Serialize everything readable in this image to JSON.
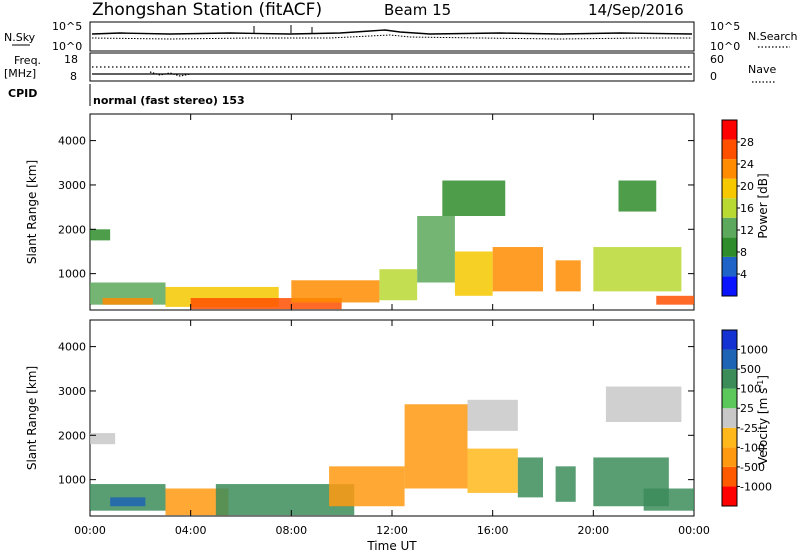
{
  "header": {
    "station": "Zhongshan Station (fitACF)",
    "beam": "Beam 15",
    "date": "14/Sep/2016"
  },
  "noise_panel": {
    "left_label": "N.Sky",
    "left_ticks": [
      "10^5",
      "10^0"
    ],
    "right_ticks": [
      "10^5",
      "10^0"
    ],
    "right_label": "N.Search"
  },
  "freq_panel": {
    "left_label_1": "Freq.",
    "left_label_2": "[MHz]",
    "left_ticks": [
      "18",
      "8"
    ],
    "right_ticks": [
      "60",
      "0"
    ],
    "right_label": "Nave"
  },
  "cpid_panel": {
    "label": "CPID",
    "text": "normal (fast stereo) 153"
  },
  "colors": {
    "power_scale": [
      "#0a14ff",
      "#1e64c8",
      "#2e8c2a",
      "#5ca85c",
      "#b8d832",
      "#f6c800",
      "#ff8c00",
      "#ff5000",
      "#ff0000"
    ],
    "velocity_scale": [
      "#ff0000",
      "#ff5a00",
      "#ff9a10",
      "#ffb81c",
      "#c8c8c8",
      "#5cc85c",
      "#3c8c5a",
      "#1e64b4",
      "#1432d2"
    ]
  },
  "chart_data": [
    {
      "type": "heatmap",
      "name": "power",
      "ylabel": "Slant Range [km]",
      "xlabel": "Time UT",
      "xlim": [
        0,
        24
      ],
      "ylim": [
        180,
        4600
      ],
      "y_ticks": [
        "1000",
        "2000",
        "3000",
        "4000"
      ],
      "y_tick_values": [
        1000,
        2000,
        3000,
        4000
      ],
      "colorbar": {
        "label": "Power [dB]",
        "ticks": [
          "4",
          "8",
          "12",
          "16",
          "20",
          "24",
          "28"
        ],
        "range": [
          0,
          32
        ]
      },
      "regions": [
        {
          "t0": 0.0,
          "t1": 0.8,
          "r0": 1750,
          "r1": 2000,
          "val": 8
        },
        {
          "t0": 0.0,
          "t1": 3.0,
          "r0": 300,
          "r1": 800,
          "val": 14
        },
        {
          "t0": 0.5,
          "t1": 2.5,
          "r0": 300,
          "r1": 450,
          "val": 24
        },
        {
          "t0": 3.0,
          "t1": 7.5,
          "r0": 250,
          "r1": 700,
          "val": 20
        },
        {
          "t0": 4.0,
          "t1": 10.0,
          "r0": 200,
          "r1": 450,
          "val": 28
        },
        {
          "t0": 8.0,
          "t1": 11.5,
          "r0": 350,
          "r1": 850,
          "val": 22
        },
        {
          "t0": 11.5,
          "t1": 13.0,
          "r0": 400,
          "r1": 1100,
          "val": 16
        },
        {
          "t0": 13.0,
          "t1": 14.5,
          "r0": 800,
          "r1": 2300,
          "val": 12
        },
        {
          "t0": 14.5,
          "t1": 16.0,
          "r0": 500,
          "r1": 1500,
          "val": 20
        },
        {
          "t0": 14.0,
          "t1": 16.5,
          "r0": 2300,
          "r1": 3100,
          "val": 8
        },
        {
          "t0": 16.0,
          "t1": 18.0,
          "r0": 600,
          "r1": 1600,
          "val": 24
        },
        {
          "t0": 18.5,
          "t1": 19.5,
          "r0": 600,
          "r1": 1300,
          "val": 24
        },
        {
          "t0": 20.0,
          "t1": 23.5,
          "r0": 600,
          "r1": 1600,
          "val": 16
        },
        {
          "t0": 21.0,
          "t1": 22.5,
          "r0": 2400,
          "r1": 3100,
          "val": 8
        },
        {
          "t0": 22.5,
          "t1": 24.0,
          "r0": 300,
          "r1": 500,
          "val": 26
        }
      ]
    },
    {
      "type": "heatmap",
      "name": "velocity",
      "ylabel": "Slant Range [km]",
      "xlabel": "Time UT",
      "xlim": [
        0,
        24
      ],
      "ylim": [
        180,
        4600
      ],
      "y_ticks": [
        "1000",
        "2000",
        "3000",
        "4000"
      ],
      "y_tick_values": [
        1000,
        2000,
        3000,
        4000
      ],
      "x_ticks": [
        "00:00",
        "04:00",
        "08:00",
        "12:00",
        "16:00",
        "20:00",
        "00:00"
      ],
      "x_tick_values": [
        0,
        4,
        8,
        12,
        16,
        20,
        24
      ],
      "colorbar": {
        "label": "Velocity [m s^-1]",
        "ticks": [
          "-1000",
          "-500",
          "-100",
          "-25",
          "25",
          "100",
          "500",
          "1000"
        ]
      },
      "regions": [
        {
          "t0": 0.0,
          "t1": 1.0,
          "r0": 1800,
          "r1": 2050,
          "val": "gray"
        },
        {
          "t0": 0.0,
          "t1": 3.0,
          "r0": 300,
          "r1": 900,
          "val": "green"
        },
        {
          "t0": 0.8,
          "t1": 2.2,
          "r0": 400,
          "r1": 600,
          "val": "blue"
        },
        {
          "t0": 3.0,
          "t1": 5.5,
          "r0": 200,
          "r1": 800,
          "val": "orange"
        },
        {
          "t0": 5.0,
          "t1": 10.5,
          "r0": 200,
          "r1": 900,
          "val": "green"
        },
        {
          "t0": 9.5,
          "t1": 12.5,
          "r0": 400,
          "r1": 1300,
          "val": "orange"
        },
        {
          "t0": 12.5,
          "t1": 15.0,
          "r0": 800,
          "r1": 2700,
          "val": "orange"
        },
        {
          "t0": 15.0,
          "t1": 17.0,
          "r0": 700,
          "r1": 1700,
          "val": "lightorange"
        },
        {
          "t0": 15.0,
          "t1": 17.0,
          "r0": 2100,
          "r1": 2800,
          "val": "gray"
        },
        {
          "t0": 17.0,
          "t1": 18.0,
          "r0": 600,
          "r1": 1500,
          "val": "green"
        },
        {
          "t0": 18.5,
          "t1": 19.3,
          "r0": 500,
          "r1": 1300,
          "val": "green"
        },
        {
          "t0": 20.0,
          "t1": 23.0,
          "r0": 400,
          "r1": 1500,
          "val": "green"
        },
        {
          "t0": 20.5,
          "t1": 23.5,
          "r0": 2300,
          "r1": 3100,
          "val": "gray"
        },
        {
          "t0": 22.0,
          "t1": 24.0,
          "r0": 300,
          "r1": 800,
          "val": "green"
        }
      ]
    }
  ]
}
